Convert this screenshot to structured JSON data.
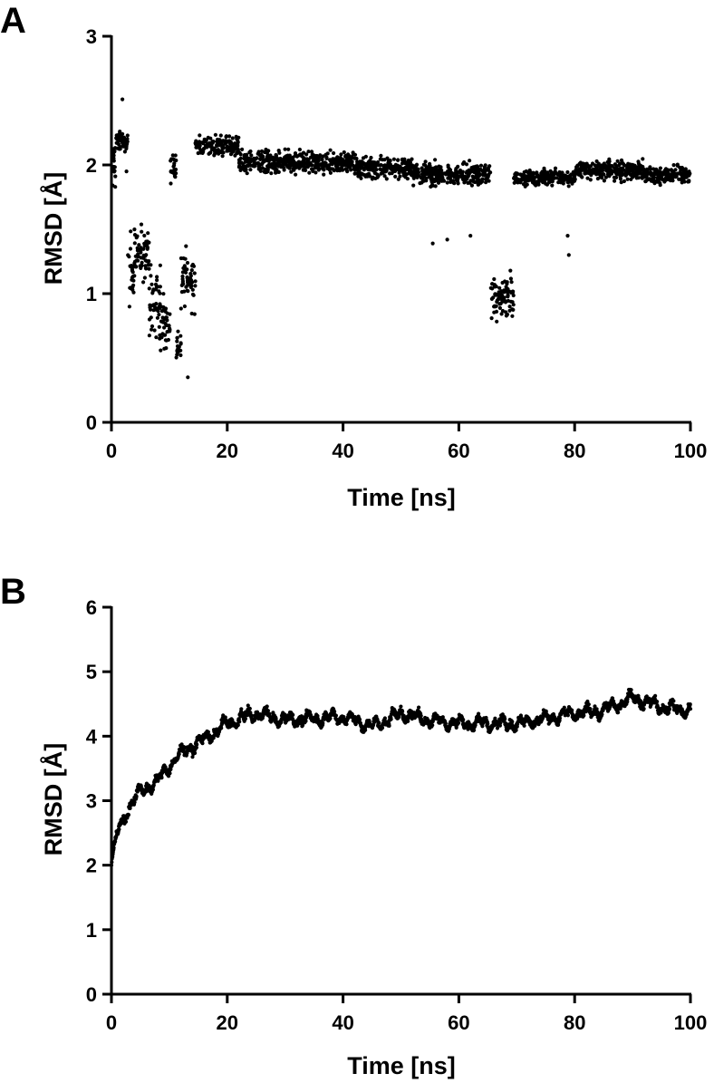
{
  "chart_data": [
    {
      "panel_label": "A",
      "type": "scatter",
      "xlabel": "Time [ns]",
      "ylabel": "RMSD [Å]",
      "xlim": [
        0,
        100
      ],
      "ylim": [
        0,
        3
      ],
      "xticks": [
        "0",
        "20",
        "40",
        "60",
        "80",
        "100"
      ],
      "yticks": [
        "0",
        "1",
        "2",
        "3"
      ],
      "grid": false,
      "marker_color": "#000000",
      "series": [
        {
          "segments": [
            {
              "x": [
                0,
                0.8
              ],
              "center": 2.0,
              "spread": 0.35
            },
            {
              "x": [
                0.8,
                2.8
              ],
              "center": 2.18,
              "spread": 0.12
            },
            {
              "x": [
                2.8,
                4.0
              ],
              "center": 1.2,
              "spread": 0.45
            },
            {
              "x": [
                4.0,
                6.5
              ],
              "center": 1.3,
              "spread": 0.35
            },
            {
              "x": [
                6.5,
                8.5
              ],
              "center": 0.95,
              "spread": 0.45
            },
            {
              "x": [
                8.5,
                10.2
              ],
              "center": 0.75,
              "spread": 0.4
            },
            {
              "x": [
                10.2,
                11.2
              ],
              "center": 2.0,
              "spread": 0.22
            },
            {
              "x": [
                11.2,
                12.0
              ],
              "center": 0.6,
              "spread": 0.22
            },
            {
              "x": [
                12.0,
                14.5
              ],
              "center": 1.1,
              "spread": 0.35
            },
            {
              "x": [
                14.5,
                22.0
              ],
              "center": 2.15,
              "spread": 0.13
            },
            {
              "x": [
                22.0,
                42.0
              ],
              "center": 2.02,
              "spread": 0.14
            },
            {
              "x": [
                42.0,
                52.0
              ],
              "center": 1.98,
              "spread": 0.15
            },
            {
              "x": [
                52.0,
                65.5
              ],
              "center": 1.93,
              "spread": 0.13
            },
            {
              "x": [
                65.5,
                69.5
              ],
              "center": 0.95,
              "spread": 0.32
            },
            {
              "x": [
                69.5,
                80.0
              ],
              "center": 1.9,
              "spread": 0.09
            },
            {
              "x": [
                80.0,
                92.0
              ],
              "center": 1.96,
              "spread": 0.13
            },
            {
              "x": [
                92.0,
                100.0
              ],
              "center": 1.92,
              "spread": 0.1
            }
          ],
          "outliers": [
            {
              "x": 1.9,
              "y": 2.51
            },
            {
              "x": 2.6,
              "y": 1.95
            },
            {
              "x": 55.5,
              "y": 1.39
            },
            {
              "x": 58.0,
              "y": 1.42
            },
            {
              "x": 62.0,
              "y": 1.45
            },
            {
              "x": 79.0,
              "y": 1.3
            },
            {
              "x": 78.8,
              "y": 1.45
            },
            {
              "x": 13.2,
              "y": 0.35
            }
          ]
        }
      ]
    },
    {
      "panel_label": "B",
      "type": "scatter",
      "xlabel": "Time [ns]",
      "ylabel": "RMSD [Å]",
      "xlim": [
        0,
        100
      ],
      "ylim": [
        0,
        6
      ],
      "xticks": [
        "0",
        "20",
        "40",
        "60",
        "80",
        "100"
      ],
      "yticks": [
        "0",
        "1",
        "2",
        "3",
        "4",
        "5",
        "6"
      ],
      "grid": false,
      "marker_color": "#000000",
      "series": [
        {
          "trend": [
            {
              "x": 0,
              "y": 2.0
            },
            {
              "x": 1,
              "y": 2.5
            },
            {
              "x": 3,
              "y": 2.9
            },
            {
              "x": 5,
              "y": 3.15
            },
            {
              "x": 8,
              "y": 3.3
            },
            {
              "x": 10,
              "y": 3.55
            },
            {
              "x": 13,
              "y": 3.8
            },
            {
              "x": 16,
              "y": 3.95
            },
            {
              "x": 20,
              "y": 4.2
            },
            {
              "x": 25,
              "y": 4.35
            },
            {
              "x": 30,
              "y": 4.25
            },
            {
              "x": 40,
              "y": 4.3
            },
            {
              "x": 45,
              "y": 4.15
            },
            {
              "x": 50,
              "y": 4.35
            },
            {
              "x": 55,
              "y": 4.25
            },
            {
              "x": 60,
              "y": 4.2
            },
            {
              "x": 70,
              "y": 4.2
            },
            {
              "x": 80,
              "y": 4.35
            },
            {
              "x": 85,
              "y": 4.4
            },
            {
              "x": 90,
              "y": 4.6
            },
            {
              "x": 95,
              "y": 4.45
            },
            {
              "x": 100,
              "y": 4.4
            }
          ],
          "spread": 0.1
        }
      ]
    }
  ]
}
